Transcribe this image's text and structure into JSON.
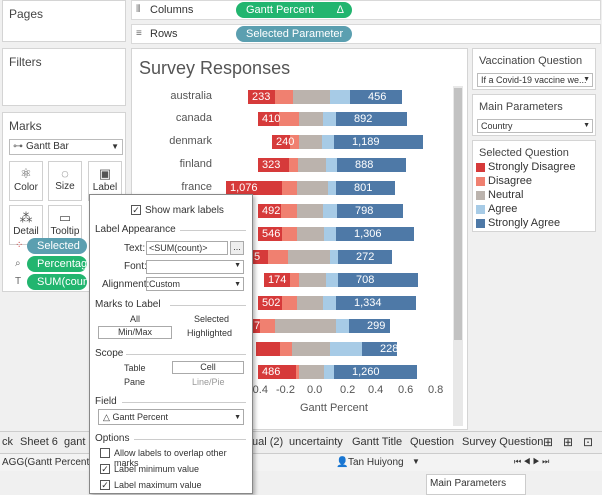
{
  "left": {
    "pages": "Pages",
    "filters": "Filters",
    "marks": "Marks",
    "mark_type": "Gantt Bar",
    "buttons": [
      "Color",
      "Size",
      "Label",
      "Detail",
      "Tooltip"
    ],
    "pills": [
      "Selected Q",
      "Percentage",
      "SUM(coun"
    ]
  },
  "shelves": {
    "columns_label": "Columns",
    "columns_pill": "Gantt Percent",
    "columns_delta": "Δ",
    "rows_label": "Rows",
    "rows_pill": "Selected Parameter"
  },
  "chart_data": {
    "type": "bar",
    "title": "Survey Responses",
    "xlabel": "Gantt Percent",
    "x_ticks": [
      "-0.4",
      "-0.2",
      "0.0",
      "0.2",
      "0.4",
      "0.6",
      "0.8"
    ],
    "categories": [
      "australia",
      "canada",
      "denmark",
      "finland",
      "france"
    ],
    "labels_left": [
      "233",
      "410",
      "240",
      "323",
      "1,076",
      "492",
      "546",
      "5",
      "174",
      "502",
      "7",
      "",
      "486"
    ],
    "labels_right": [
      "456",
      "892",
      "1,189",
      "888",
      "801",
      "798",
      "1,306",
      "272",
      "708",
      "1,334",
      "299",
      "228",
      "1,260"
    ],
    "colors": {
      "strongly_disagree": "#d63a3a",
      "disagree": "#f08070",
      "neutral": "#bbb3ad",
      "agree": "#a7cbe6",
      "strongly_agree": "#4e79a7"
    }
  },
  "right": {
    "vacc_title": "Vaccination Question",
    "vacc_value": "If a Covid-19 vaccine we...",
    "main_title": "Main Parameters",
    "main_value": "Country",
    "legend_title": "Selected Question",
    "legend": [
      "Strongly Disagree",
      "Disagree",
      "Neutral",
      "Agree",
      "Strongly Agree"
    ]
  },
  "dialog": {
    "show_labels": "Show mark labels",
    "label_appearance": "Label Appearance",
    "text_label": "Text:",
    "text_value": "<SUM(count)>",
    "more": "...",
    "font_label": "Font:",
    "align_label": "Alignment:",
    "align_value": "Custom",
    "marks_to_label": "Marks to Label",
    "all": "All",
    "selected": "Selected",
    "minmax": "Min/Max",
    "highlighted": "Highlighted",
    "scope": "Scope",
    "table": "Table",
    "cell": "Cell",
    "pane": "Pane",
    "linepie": "Line/Pie",
    "field": "Field",
    "field_value": "Gantt Percent",
    "options": "Options",
    "opt1": "Allow labels to overlap other marks",
    "opt2": "Label minimum value",
    "opt3": "Label maximum value"
  },
  "tabs": [
    "ck",
    "Sheet 6",
    "gant",
    "ual (2)",
    "uncertainty",
    "Gantt Title",
    "Question",
    "Survey Question"
  ],
  "status": {
    "agg": "AGG(Gantt Percent): -0.",
    "user": "Tan Huiyong",
    "nav": "⏮ ◀ ▶ ⏭",
    "bottom_panel": "Main Parameters"
  }
}
